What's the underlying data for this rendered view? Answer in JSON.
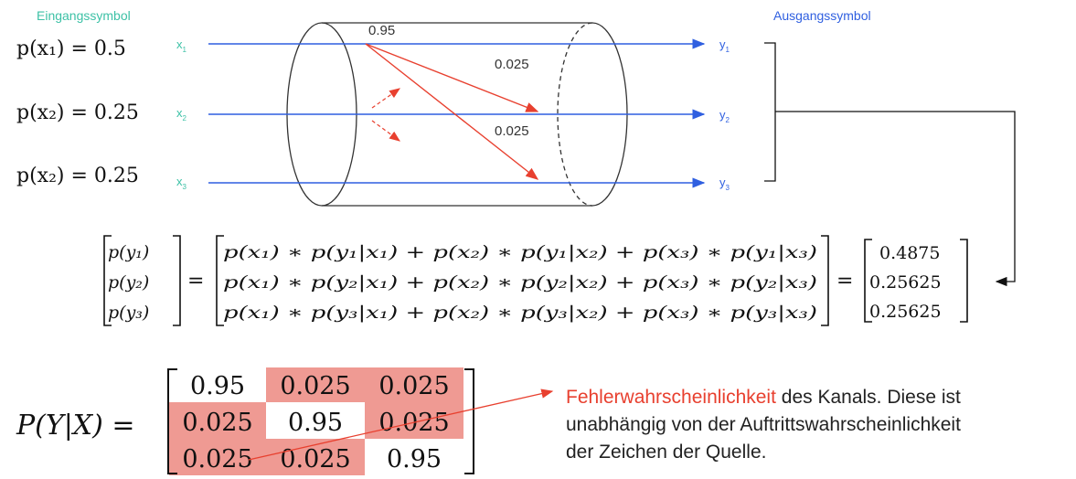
{
  "labels": {
    "input_heading": "Eingangssymbol",
    "output_heading": "Ausgangssymbol"
  },
  "inputs": [
    {
      "prob_label": "p(x₁) = 0.5",
      "symbol": "x",
      "sub": "1"
    },
    {
      "prob_label": "p(x₂) = 0.25",
      "symbol": "x",
      "sub": "2"
    },
    {
      "prob_label": "p(x₂) = 0.25",
      "symbol": "x",
      "sub": "3"
    }
  ],
  "outputs": [
    {
      "symbol": "y",
      "sub": "1"
    },
    {
      "symbol": "y",
      "sub": "2"
    },
    {
      "symbol": "y",
      "sub": "3"
    }
  ],
  "channel_labels": {
    "straight": "0.95",
    "cross_1": "0.025",
    "cross_2": "0.025"
  },
  "equation": {
    "lhs": [
      "p(y₁)",
      "p(y₂)",
      "p(y₃)"
    ],
    "equals": "=",
    "middle": [
      "p(x₁) ∗ p(y₁|x₁) + p(x₂) ∗ p(y₁|x₂) + p(x₃) ∗ p(y₁|x₃)",
      "p(x₁) ∗ p(y₂|x₁) + p(x₂) ∗ p(y₂|x₂) + p(x₃) ∗ p(y₂|x₃)",
      "p(x₁) ∗ p(y₃|x₁) + p(x₂) ∗ p(y₃|x₂) + p(x₃) ∗ p(y₃|x₃)"
    ],
    "rhs": [
      "0.4875",
      "0.25625",
      "0.25625"
    ]
  },
  "matrix": {
    "label": "P(Y|X) =",
    "rows": [
      [
        "0.95",
        "0.025",
        "0.025"
      ],
      [
        "0.025",
        "0.95",
        "0.025"
      ],
      [
        "0.025",
        "0.025",
        "0.95"
      ]
    ]
  },
  "note": {
    "highlight": "Fehlerwahrscheinlichkeit",
    "line1_rest": " des Kanals. Diese ist",
    "line2": "unabhängig von der Auftrittswahrscheinlichkeit",
    "line3": "der Zeichen der Quelle."
  },
  "colors": {
    "teal": "#3dc1a6",
    "blue": "#2f5fe0",
    "red": "#e8402f",
    "error_fill": "#ef9a93",
    "black": "#111111"
  }
}
